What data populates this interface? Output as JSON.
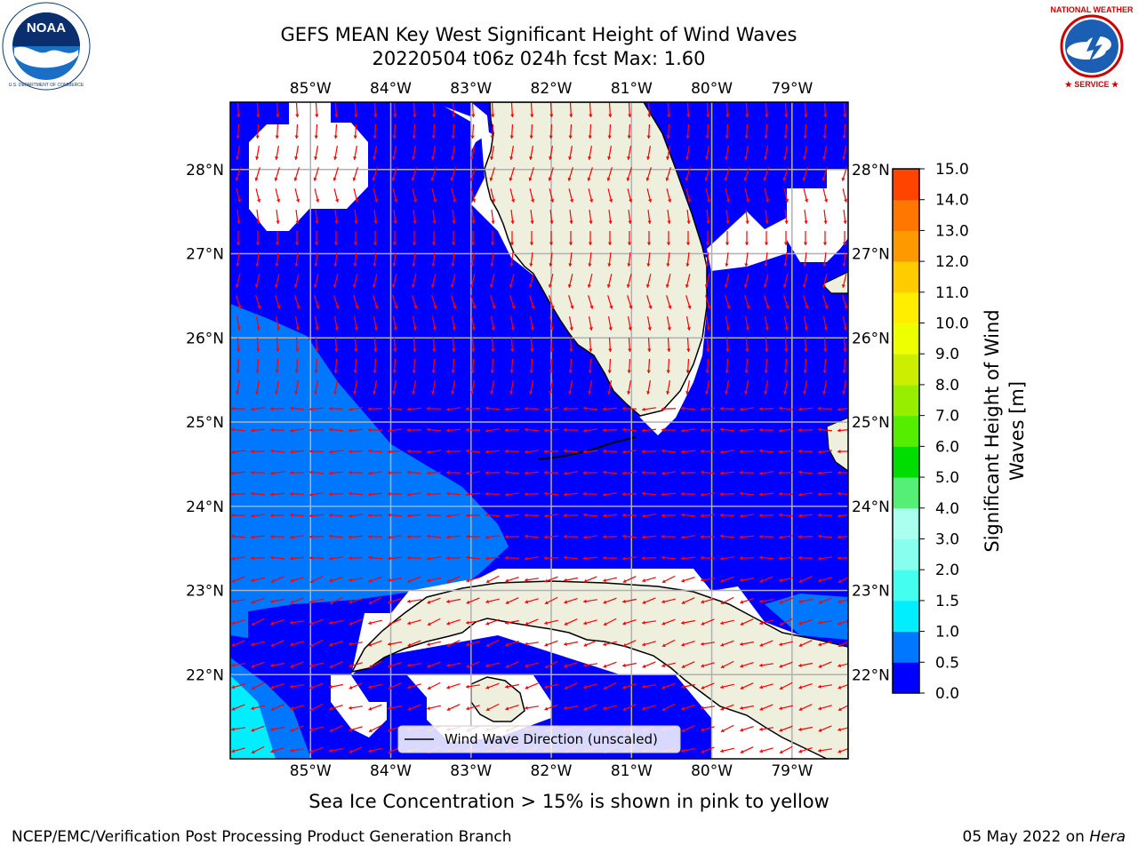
{
  "header": {
    "title_line1": "GEFS MEAN Key West Significant Height of Wind Waves",
    "title_line2": "20220504 t06z 024h fcst   Max: 1.60"
  },
  "logos": {
    "left": {
      "icon": "noaa-logo",
      "text": "NOAA",
      "ring_text": "NATIONAL OCEANIC AND ATMOSPHERIC ADMINISTRATION · U.S. DEPARTMENT OF COMMERCE"
    },
    "right": {
      "icon": "nws-logo",
      "ring_text": "NATIONAL WEATHER SERVICE"
    }
  },
  "map": {
    "lon_labels": [
      "85°W",
      "84°W",
      "83°W",
      "82°W",
      "81°W",
      "80°W",
      "79°W"
    ],
    "lon_values": [
      -85,
      -84,
      -83,
      -82,
      -81,
      -80,
      -79
    ],
    "lat_labels": [
      "28°N",
      "27°N",
      "26°N",
      "25°N",
      "24°N",
      "23°N",
      "22°N"
    ],
    "lat_values": [
      28,
      27,
      26,
      25,
      24,
      23,
      22
    ],
    "lon_range": [
      -86.0,
      -78.3
    ],
    "lat_range": [
      21.0,
      28.8
    ],
    "land_color": "#efefde",
    "arrow_color": "#ff0000",
    "grid_color": "#b0b0b0",
    "legend_label": "Wind Wave Direction (unscaled)"
  },
  "colorbar": {
    "label_line1": "Significant Height of Wind",
    "label_line2": "Waves [m]",
    "ticks": [
      "0.0",
      "0.5",
      "1.0",
      "1.5",
      "2.0",
      "3.0",
      "4.0",
      "5.0",
      "6.0",
      "7.0",
      "8.0",
      "9.0",
      "10.0",
      "11.0",
      "12.0",
      "13.0",
      "14.0",
      "15.0"
    ],
    "colors": [
      "#0000ff",
      "#0077ff",
      "#00eeff",
      "#44ffee",
      "#88ffee",
      "#aaffee",
      "#55ee77",
      "#00dd00",
      "#55ee00",
      "#99ee00",
      "#ccee00",
      "#eeff00",
      "#ffee00",
      "#ffcc00",
      "#ff9900",
      "#ff7700",
      "#ff4400",
      "#ff0000"
    ]
  },
  "caption": "Sea Ice Concentration > 15% is shown in pink to yellow",
  "footer": {
    "left": "NCEP/EMC/Verification Post Processing Product Generation Branch",
    "right_date": "05 May 2022 on ",
    "right_host": "Hera"
  }
}
